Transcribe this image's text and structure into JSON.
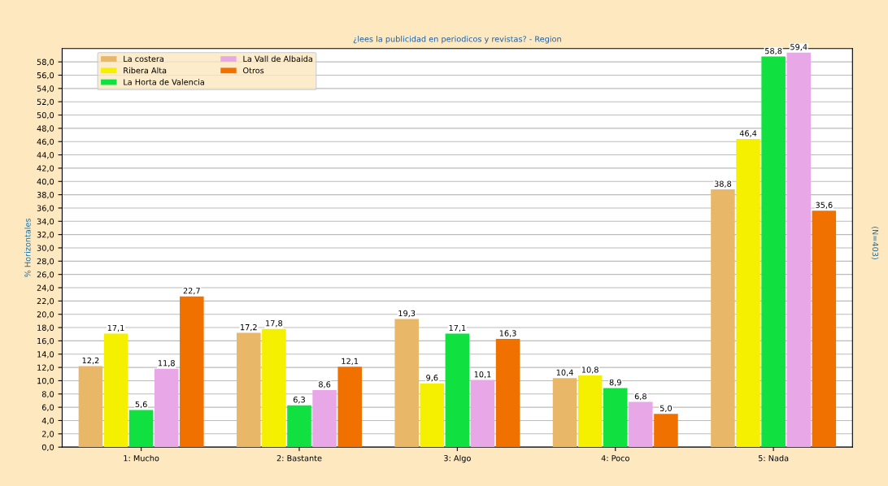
{
  "chart_data": {
    "type": "bar",
    "title": "¿lees la publicidad en periodicos y revistas? - Region",
    "ylabel": "% Horizontales",
    "annotations": [
      "(N=403)"
    ],
    "categories": [
      "1: Mucho",
      "2: Bastante",
      "3: Algo",
      "4: Poco",
      "5: Nada"
    ],
    "series": [
      {
        "name": "La costera",
        "color": "#e8b868",
        "values": [
          12.2,
          17.2,
          19.3,
          10.4,
          38.8
        ]
      },
      {
        "name": "Ribera Alta",
        "color": "#f5f000",
        "values": [
          17.1,
          17.8,
          9.6,
          10.8,
          46.4
        ]
      },
      {
        "name": "La Horta de Valencia",
        "color": "#10e040",
        "values": [
          5.6,
          6.3,
          17.1,
          8.9,
          58.8
        ]
      },
      {
        "name": "La Vall de Albaida",
        "color": "#e8a8e8",
        "values": [
          11.8,
          8.6,
          10.1,
          6.8,
          59.4
        ]
      },
      {
        "name": "Otros",
        "color": "#f07000",
        "values": [
          22.7,
          12.1,
          16.3,
          5.0,
          35.6
        ]
      }
    ],
    "value_labels": [
      [
        "12,2",
        "17,2",
        "19,3",
        "10,4",
        "38,8"
      ],
      [
        "17,1",
        "17,8",
        "9,6",
        "10,8",
        "46,4"
      ],
      [
        "5,6",
        "6,3",
        "17,1",
        "8,9",
        "58,8"
      ],
      [
        "11,8",
        "8,6",
        "10,1",
        "6,8",
        "59,4"
      ],
      [
        "22,7",
        "12,1",
        "16,3",
        "5,0",
        "35,6"
      ]
    ],
    "ylim": [
      0,
      60
    ],
    "yticks": [
      {
        "value": 0,
        "label": "0,0"
      },
      {
        "value": 2,
        "label": "2,0"
      },
      {
        "value": 4,
        "label": "4,0"
      },
      {
        "value": 6,
        "label": "6,0"
      },
      {
        "value": 8,
        "label": "8,0"
      },
      {
        "value": 10,
        "label": "10,0"
      },
      {
        "value": 12,
        "label": "12,0"
      },
      {
        "value": 14,
        "label": "14,0"
      },
      {
        "value": 16,
        "label": "16,0"
      },
      {
        "value": 18,
        "label": "18,0"
      },
      {
        "value": 20,
        "label": "20,0"
      },
      {
        "value": 22,
        "label": "22,0"
      },
      {
        "value": 24,
        "label": "24,0"
      },
      {
        "value": 26,
        "label": "26,0"
      },
      {
        "value": 28,
        "label": "28,0"
      },
      {
        "value": 30,
        "label": "30,0"
      },
      {
        "value": 32,
        "label": "32,0"
      },
      {
        "value": 34,
        "label": "34,0"
      },
      {
        "value": 36,
        "label": "36,0"
      },
      {
        "value": 38,
        "label": "38,0"
      },
      {
        "value": 40,
        "label": "40,0"
      },
      {
        "value": 42,
        "label": "42,0"
      },
      {
        "value": 44,
        "label": "44,0"
      },
      {
        "value": 46,
        "label": "46,0"
      },
      {
        "value": 48,
        "label": "48,0"
      },
      {
        "value": 50,
        "label": "50,0"
      },
      {
        "value": 52,
        "label": "52,0"
      },
      {
        "value": 54,
        "label": "54,0"
      },
      {
        "value": 56,
        "label": "56,0"
      },
      {
        "value": 58,
        "label": "58,0"
      }
    ],
    "grid": "y",
    "legend": "top left"
  }
}
